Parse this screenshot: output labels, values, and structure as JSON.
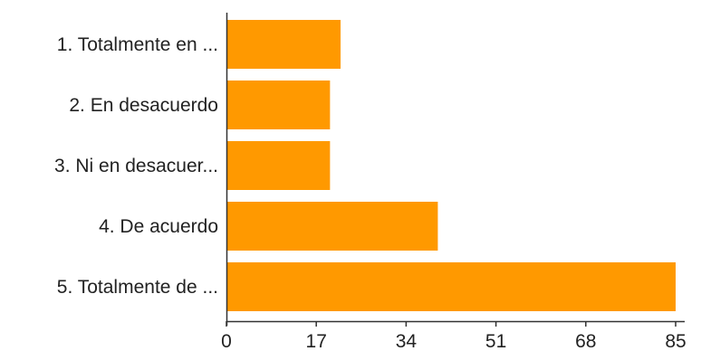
{
  "chart_data": {
    "type": "bar",
    "orientation": "horizontal",
    "categories": [
      "1. Totalmente en ...",
      "2. En desacuerdo",
      "3. Ni en desacuer...",
      "4. De acuerdo",
      "5. Totalmente de ..."
    ],
    "values": [
      21.6,
      19.6,
      19.6,
      40,
      85
    ],
    "xlim": [
      0,
      85
    ],
    "xticks": [
      "0",
      "17",
      "34",
      "51",
      "68",
      "85"
    ],
    "tick_values": [
      0,
      17,
      34,
      51,
      68,
      85
    ],
    "bar_color": "#FF9900",
    "grid": false
  }
}
